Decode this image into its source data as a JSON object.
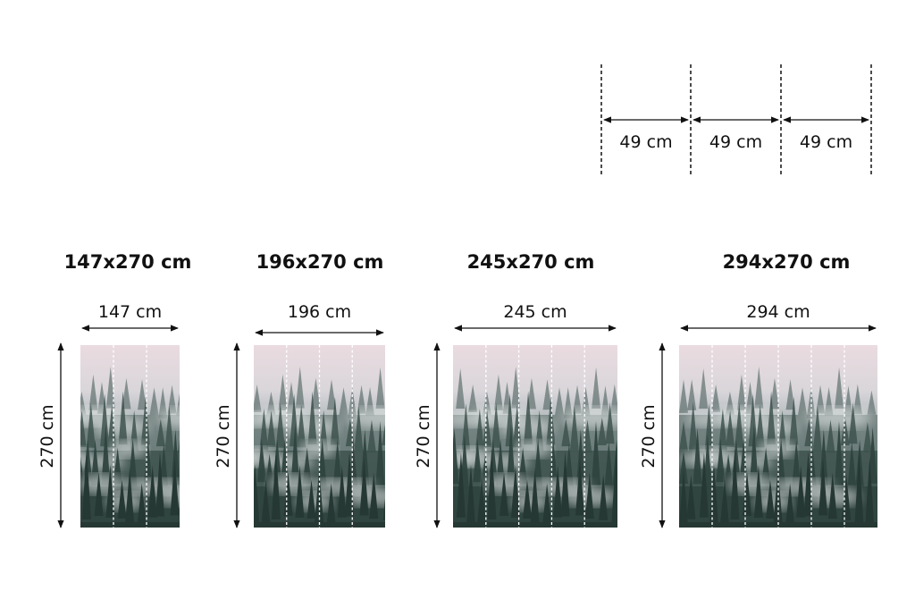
{
  "strip_width": {
    "labels": [
      "49 cm",
      "49 cm",
      "49 cm"
    ]
  },
  "sizes": [
    {
      "title": "147x270 cm",
      "width_label": "147 cm",
      "height_label": "270 cm",
      "strips": 3
    },
    {
      "title": "196x270 cm",
      "width_label": "196 cm",
      "height_label": "270 cm",
      "strips": 4
    },
    {
      "title": "245x270 cm",
      "width_label": "245 cm",
      "height_label": "270 cm",
      "strips": 5
    },
    {
      "title": "294x270 cm",
      "width_label": "294 cm",
      "height_label": "270 cm",
      "strips": 6
    }
  ],
  "image": {
    "subject": "foggy-pine-forest",
    "colors": {
      "sky": "#e9dadf",
      "fog": "#c9d1d1",
      "trees": "#2f4340"
    }
  }
}
